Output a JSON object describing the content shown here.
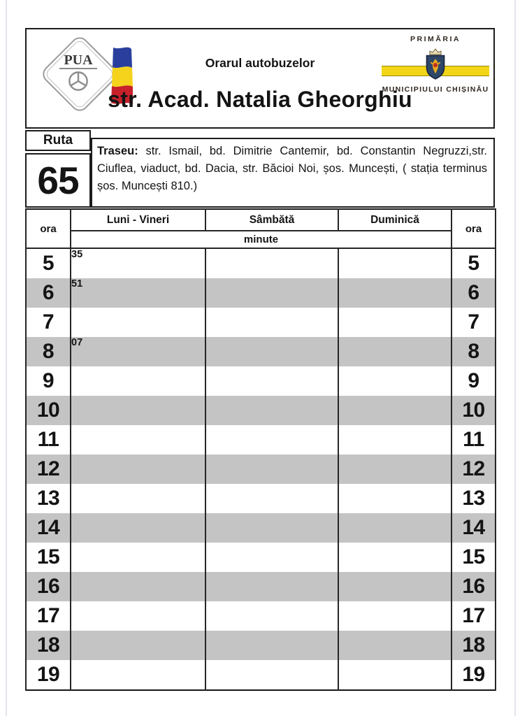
{
  "header": {
    "small_title": "Orarul autobuzelor",
    "street_title": "str. Acad. Natalia Gheorghiu",
    "pua": {
      "acronym": "PUA"
    },
    "primaria": {
      "line1": "PRIMĂRIA",
      "line2": "MUNICIPIULUI CHIȘINĂU"
    }
  },
  "route": {
    "label": "Ruta",
    "number": "65",
    "traseu_label": "Traseu:",
    "traseu_text": "str. Ismail, bd. Dimitrie Cantemir, bd. Constantin Negruzzi,str. Ciuflea, viaduct, bd. Dacia, str. Băcioi Noi, șos. Muncești, ( stația terminus șos. Muncești 810.)"
  },
  "schedule": {
    "hour_col_label": "ora",
    "day_columns": [
      "Luni - Vineri",
      "Sâmbătă",
      "Duminică"
    ],
    "minute_label": "minute",
    "rows": [
      {
        "hour": "5",
        "luni_vineri": "35",
        "sambata": "",
        "duminica": ""
      },
      {
        "hour": "6",
        "luni_vineri": "51",
        "sambata": "",
        "duminica": ""
      },
      {
        "hour": "7",
        "luni_vineri": "",
        "sambata": "",
        "duminica": ""
      },
      {
        "hour": "8",
        "luni_vineri": "07",
        "sambata": "",
        "duminica": ""
      },
      {
        "hour": "9",
        "luni_vineri": "",
        "sambata": "",
        "duminica": ""
      },
      {
        "hour": "10",
        "luni_vineri": "",
        "sambata": "",
        "duminica": ""
      },
      {
        "hour": "11",
        "luni_vineri": "",
        "sambata": "",
        "duminica": ""
      },
      {
        "hour": "12",
        "luni_vineri": "",
        "sambata": "",
        "duminica": ""
      },
      {
        "hour": "13",
        "luni_vineri": "",
        "sambata": "",
        "duminica": ""
      },
      {
        "hour": "14",
        "luni_vineri": "",
        "sambata": "",
        "duminica": ""
      },
      {
        "hour": "15",
        "luni_vineri": "",
        "sambata": "",
        "duminica": ""
      },
      {
        "hour": "16",
        "luni_vineri": "",
        "sambata": "",
        "duminica": ""
      },
      {
        "hour": "17",
        "luni_vineri": "",
        "sambata": "",
        "duminica": ""
      },
      {
        "hour": "18",
        "luni_vineri": "",
        "sambata": "",
        "duminica": ""
      },
      {
        "hour": "19",
        "luni_vineri": "",
        "sambata": "",
        "duminica": ""
      }
    ]
  },
  "colors": {
    "row_stripe": "#c4c4c4",
    "table_border": "#1a1a1a",
    "band_yellow": "#f2d517",
    "flag_blue": "#2a3f9d",
    "flag_yellow": "#f5d21c",
    "flag_red": "#c8202a",
    "shield_blue": "#2e4668"
  }
}
